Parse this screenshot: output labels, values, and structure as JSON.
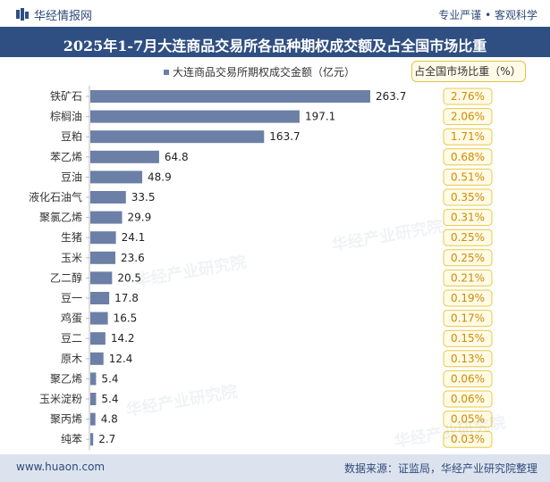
{
  "header": {
    "brand": "华经情报网",
    "tagline": "专业严谨 • 客观科学",
    "title": "2025年1-7月大连商品交易所各品种期权成交额及占全国市场比重"
  },
  "footer": {
    "url": "www.huaon.com",
    "source": "数据来源：证监局，华经产业研究院整理"
  },
  "colors": {
    "bar": "#6c7fa6",
    "pct_box_border": "#e8c84a",
    "pct_box_fill": "#fffbe6",
    "pct_text": "#d08a00",
    "header_bg": "#2f4f82"
  },
  "chart_data": {
    "type": "bar",
    "orientation": "horizontal",
    "title": "2025年1-7月大连商品交易所各品种期权成交额及占全国市场比重",
    "legend": [
      "大连商品交易所期权成交金额（亿元）",
      "占全国市场比重（%）"
    ],
    "categories": [
      "铁矿石",
      "棕榈油",
      "豆粕",
      "苯乙烯",
      "豆油",
      "液化石油气",
      "聚氯乙烯",
      "生猪",
      "玉米",
      "乙二醇",
      "豆一",
      "鸡蛋",
      "豆二",
      "原木",
      "聚乙烯",
      "玉米淀粉",
      "聚丙烯",
      "纯苯"
    ],
    "series": [
      {
        "name": "大连商品交易所期权成交金额（亿元）",
        "values": [
          263.7,
          197.1,
          163.7,
          64.8,
          48.9,
          33.5,
          29.9,
          24.1,
          23.6,
          20.5,
          17.8,
          16.5,
          14.2,
          12.4,
          5.4,
          5.4,
          4.8,
          2.7
        ]
      },
      {
        "name": "占全国市场比重（%）",
        "values": [
          "2.76%",
          "2.06%",
          "1.71%",
          "0.68%",
          "0.51%",
          "0.35%",
          "0.31%",
          "0.25%",
          "0.25%",
          "0.21%",
          "0.19%",
          "0.17%",
          "0.15%",
          "0.13%",
          "0.06%",
          "0.06%",
          "0.05%",
          "0.03%"
        ]
      }
    ],
    "xlim": [
      0,
      280
    ]
  }
}
